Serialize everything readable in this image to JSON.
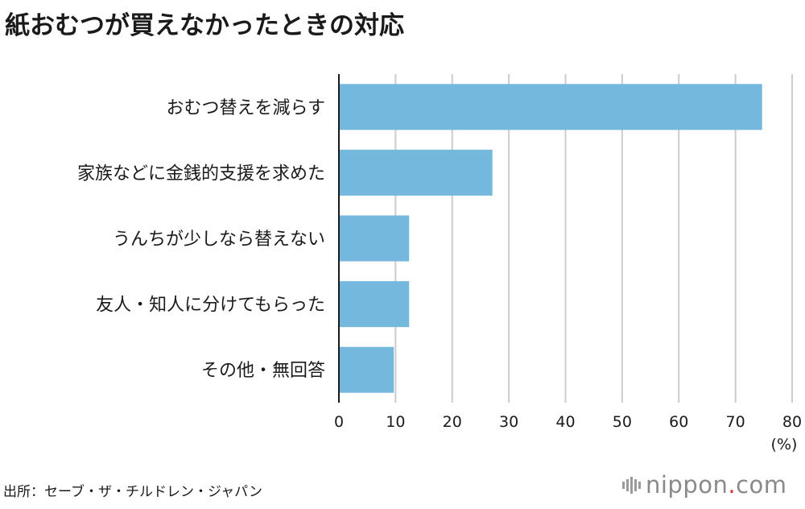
{
  "title": "紙おむつが買えなかったときの対応",
  "source": "出所：セーブ・ザ・チルドレン・ジャパン",
  "brand": {
    "name": "nippon",
    "dot": ".",
    "tld": "com",
    "icon": "nippon-bars-icon"
  },
  "colors": {
    "bar": "#75b8dd",
    "grid": "#cccccc",
    "axis": "#1a1a1a",
    "brand_dot": "#d0312d"
  },
  "chart_data": {
    "type": "bar",
    "orientation": "horizontal",
    "categories": [
      "おむつ替えを減らす",
      "家族などに金銭的支援を求めた",
      "うんちが少しなら替えない",
      "友人・知人に分けてもらった",
      "その他・無回答"
    ],
    "values": [
      74.7,
      27.1,
      12.4,
      12.4,
      9.7
    ],
    "xlim": [
      0,
      80
    ],
    "xticks": [
      "0",
      "10",
      "20",
      "30",
      "40",
      "50",
      "60",
      "70",
      "80"
    ],
    "xlabel": "(%)",
    "grid": true
  }
}
